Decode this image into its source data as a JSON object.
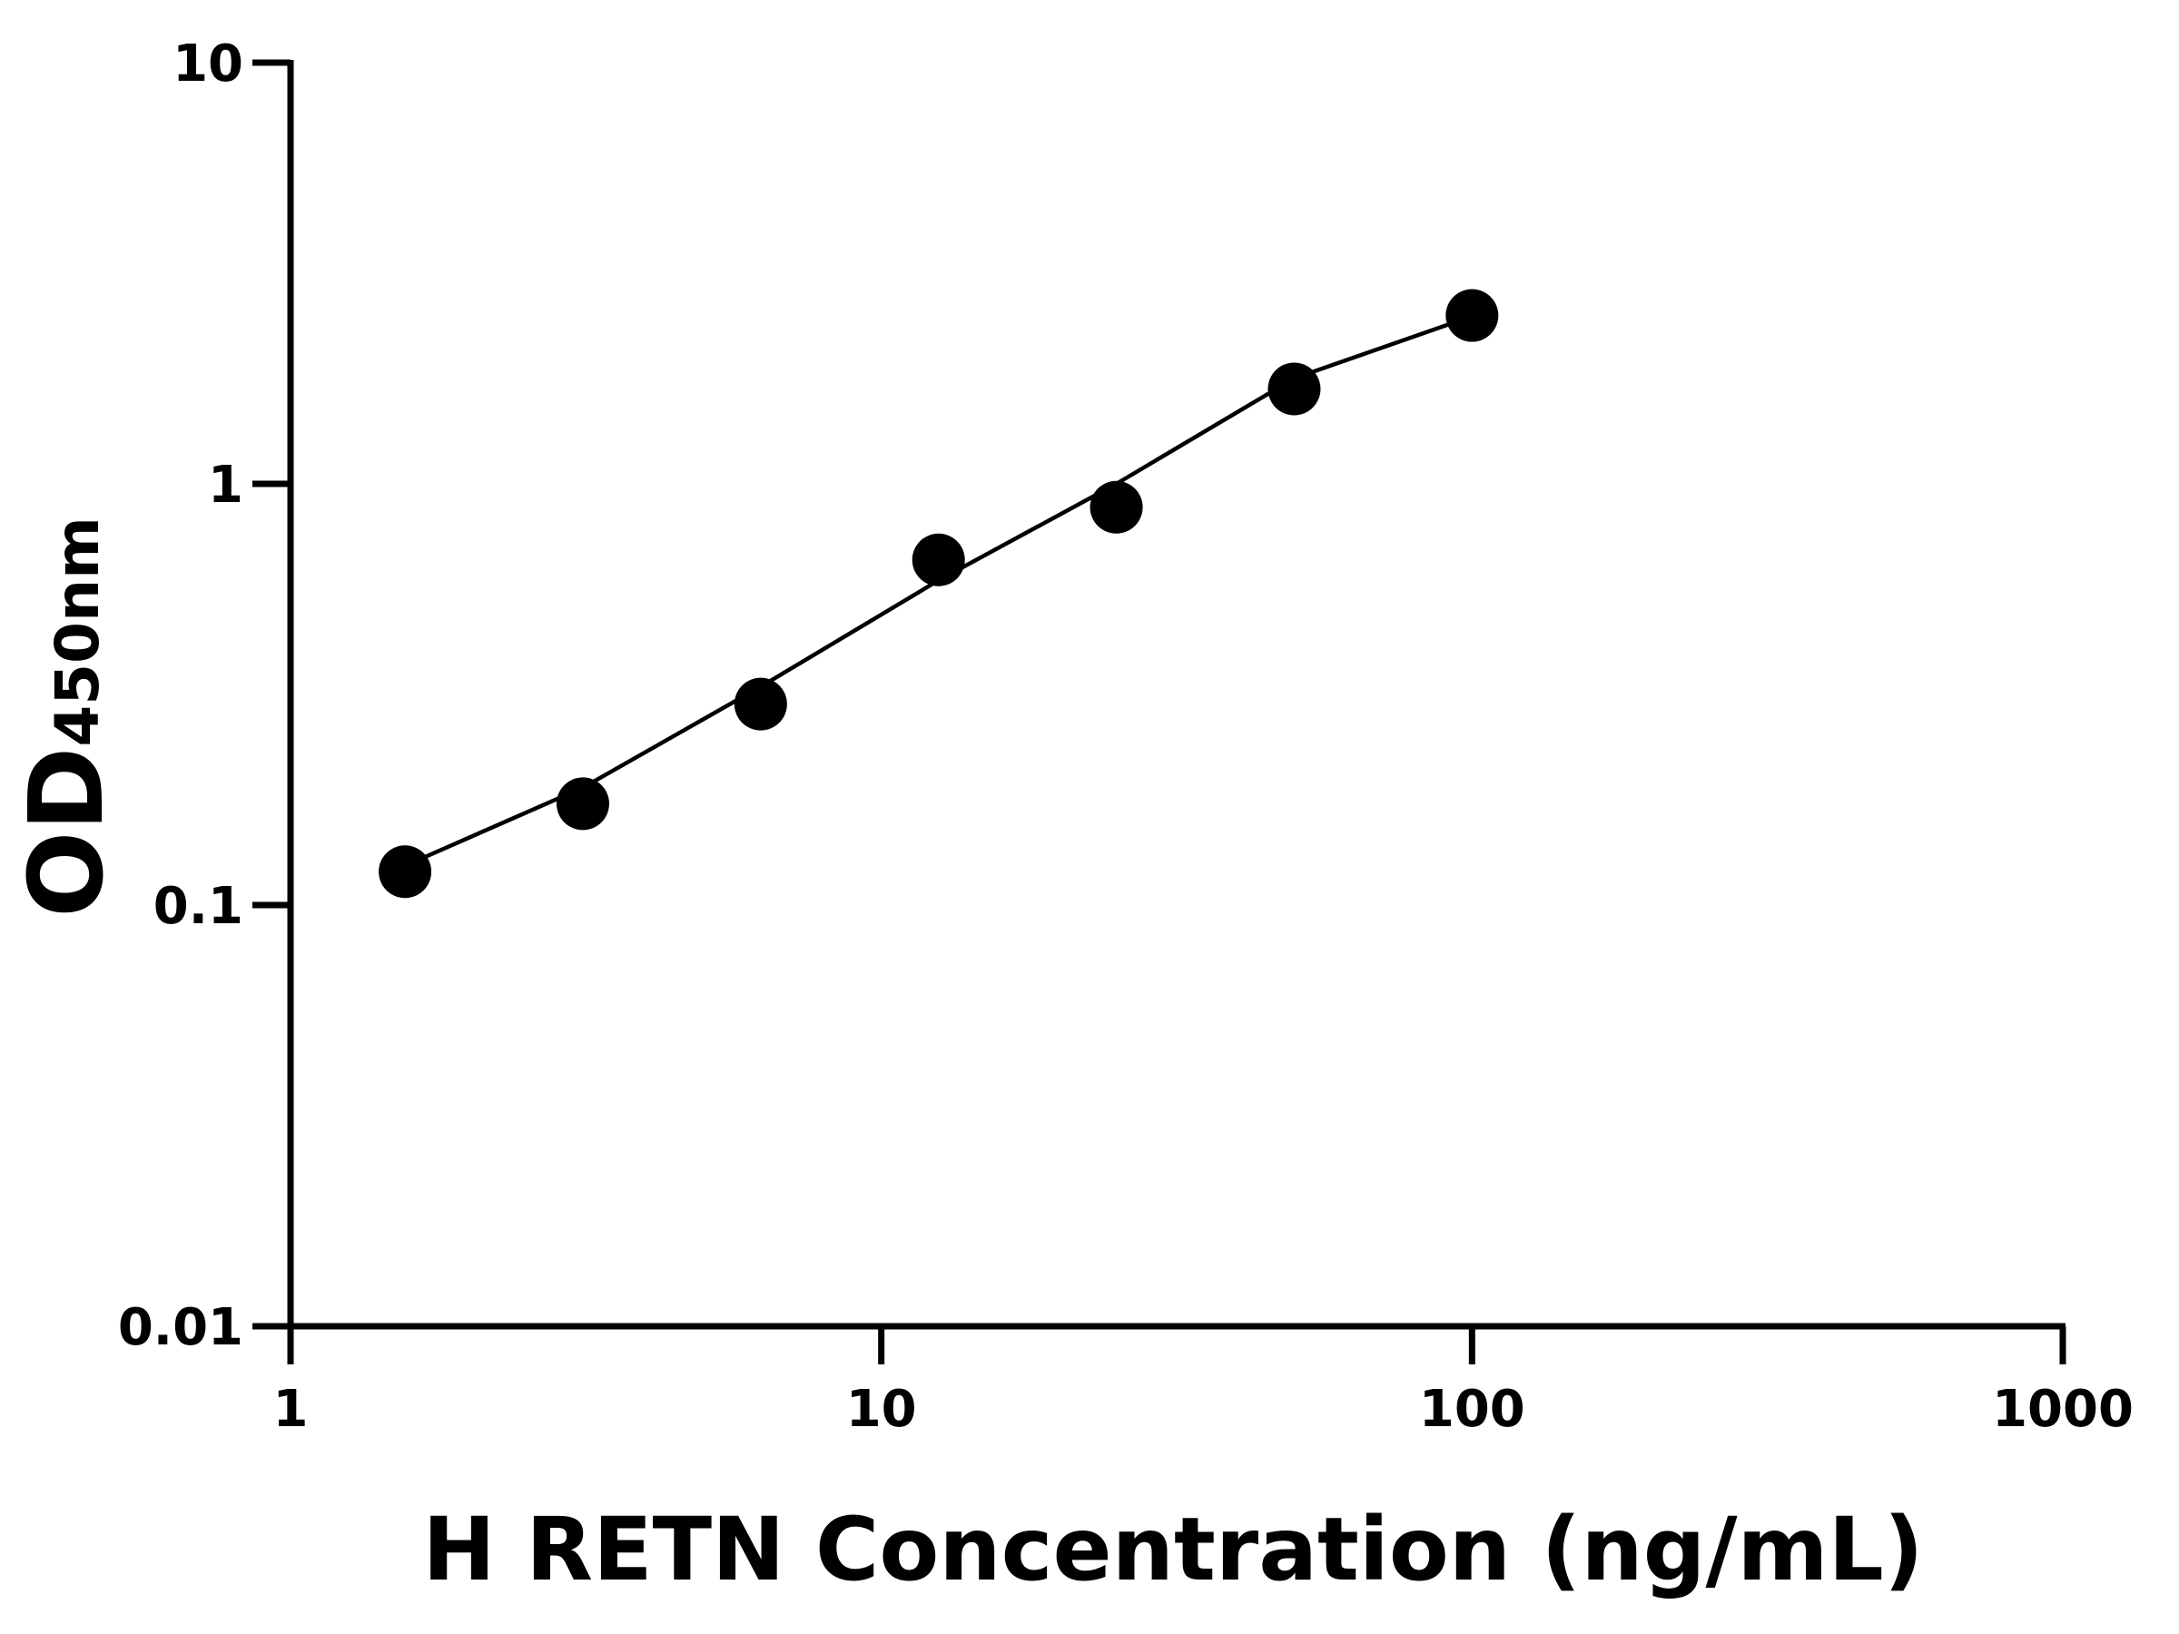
{
  "chart_data": {
    "type": "scatter",
    "xlabel": "H RETN Concentration (ng/mL)",
    "ylabel": "OD",
    "ylabel_sub": "450nm",
    "x": [
      1.5625,
      3.125,
      6.25,
      12.5,
      25,
      50,
      100
    ],
    "series": [
      {
        "type": "scatter",
        "color": "#000000",
        "values": [
          0.12,
          0.174,
          0.3,
          0.66,
          0.88,
          1.68,
          2.51
        ]
      },
      {
        "type": "line",
        "color": "#000000",
        "values": [
          0.124,
          0.19,
          0.33,
          0.59,
          1.0,
          1.78,
          2.5
        ]
      }
    ],
    "xlim": [
      1,
      1000
    ],
    "xticks": [
      1,
      10,
      100,
      1000
    ],
    "xscale": "log",
    "ylim": [
      0.01,
      10
    ],
    "yticks": [
      0.01,
      0.1,
      1,
      10
    ],
    "yscale": "log",
    "grid": false
  }
}
